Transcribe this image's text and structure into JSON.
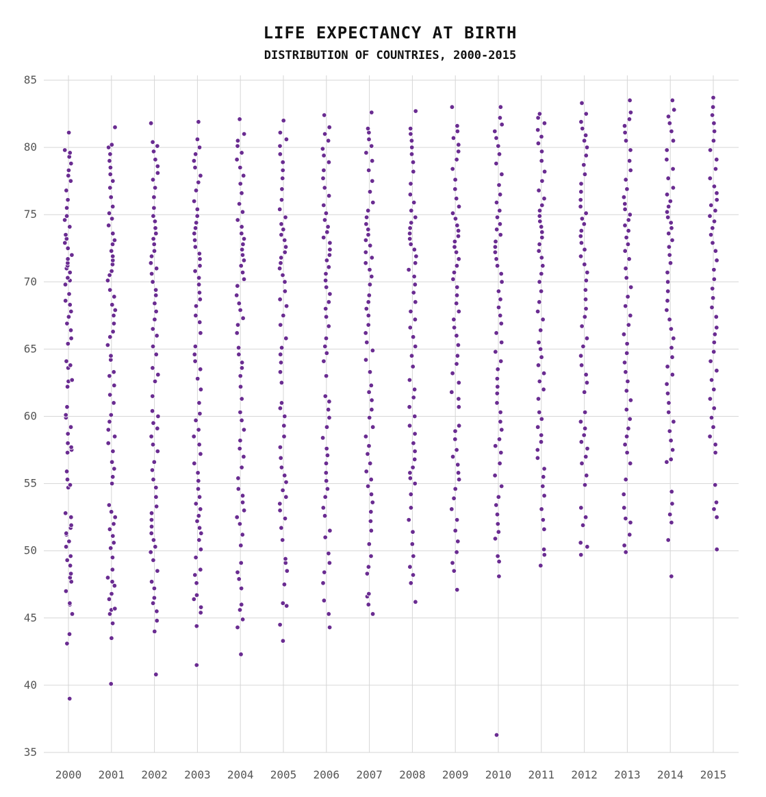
{
  "chart_data": {
    "type": "scatter",
    "title": "LIFE EXPECTANCY AT BIRTH",
    "subtitle": "DISTRIBUTION OF COUNTRIES, 2000-2015",
    "xlabel": "",
    "ylabel": "",
    "categories": [
      "2000",
      "2001",
      "2002",
      "2003",
      "2004",
      "2005",
      "2006",
      "2007",
      "2008",
      "2009",
      "2010",
      "2011",
      "2012",
      "2013",
      "2014",
      "2015"
    ],
    "ylim": [
      35,
      85
    ],
    "y_ticks": [
      35,
      40,
      45,
      50,
      55,
      60,
      65,
      70,
      75,
      80,
      85
    ],
    "grid": true,
    "point_color": "#6a2c91",
    "series": [
      {
        "year": "2000",
        "values": [
          39.0,
          43.1,
          43.8,
          45.3,
          46.0,
          46.1,
          47.0,
          47.7,
          48.0,
          48.3,
          48.9,
          49.3,
          49.6,
          50.3,
          50.7,
          51.2,
          51.3,
          51.7,
          51.9,
          52.5,
          52.8,
          54.7,
          54.9,
          55.3,
          55.9,
          57.3,
          57.5,
          57.7,
          58.0,
          58.7,
          59.2,
          59.9,
          60.1,
          60.7,
          62.2,
          62.6,
          62.7,
          63.6,
          63.8,
          64.1,
          65.4,
          65.8,
          66.4,
          66.9,
          67.4,
          67.8,
          68.3,
          68.6,
          69.1,
          69.8,
          70.1,
          70.3,
          70.7,
          71.0,
          71.2,
          71.4,
          71.7,
          72.0,
          72.5,
          72.9,
          73.2,
          73.5,
          74.1,
          74.6,
          74.9,
          75.5,
          76.1,
          76.8,
          77.5,
          77.9,
          78.3,
          78.8,
          79.3,
          79.6,
          79.8,
          81.1
        ]
      },
      {
        "year": "2001",
        "values": [
          40.1,
          43.5,
          44.6,
          45.3,
          45.6,
          45.7,
          46.4,
          46.8,
          47.4,
          47.7,
          48.0,
          48.6,
          49.5,
          50.2,
          50.6,
          51.1,
          51.6,
          52.0,
          52.5,
          52.9,
          53.4,
          55.0,
          55.5,
          56.1,
          56.6,
          57.4,
          58.0,
          58.5,
          59.0,
          59.6,
          60.1,
          61.0,
          61.6,
          62.3,
          63.0,
          63.3,
          64.2,
          64.5,
          65.3,
          65.9,
          66.3,
          66.9,
          67.5,
          67.9,
          68.3,
          68.9,
          69.4,
          70.1,
          70.5,
          70.8,
          71.3,
          71.6,
          71.9,
          72.3,
          72.8,
          73.1,
          73.6,
          74.2,
          74.7,
          75.1,
          75.6,
          76.3,
          77.0,
          77.5,
          78.0,
          78.5,
          79.0,
          79.5,
          80.0,
          80.2,
          81.5
        ]
      },
      {
        "year": "2002",
        "values": [
          40.8,
          44.0,
          44.8,
          45.5,
          46.1,
          46.5,
          47.2,
          47.7,
          48.5,
          49.3,
          49.9,
          50.3,
          50.8,
          51.3,
          51.8,
          52.3,
          52.8,
          53.3,
          54.0,
          54.7,
          55.3,
          56.0,
          56.6,
          57.4,
          57.9,
          58.5,
          59.1,
          59.5,
          60.0,
          60.4,
          61.5,
          62.6,
          63.1,
          63.6,
          64.6,
          65.2,
          66.0,
          66.5,
          67.2,
          67.8,
          68.4,
          69.0,
          69.4,
          70.0,
          70.6,
          71.0,
          71.4,
          71.9,
          72.3,
          72.8,
          73.2,
          73.6,
          74.0,
          74.5,
          74.9,
          75.5,
          76.3,
          77.0,
          77.6,
          78.1,
          78.6,
          79.1,
          79.7,
          80.1,
          80.4,
          81.8
        ]
      },
      {
        "year": "2003",
        "values": [
          41.5,
          44.4,
          45.4,
          45.8,
          46.4,
          46.7,
          47.6,
          48.2,
          48.6,
          49.5,
          50.1,
          50.8,
          51.3,
          51.7,
          52.2,
          52.6,
          53.1,
          53.5,
          54.0,
          54.6,
          55.2,
          55.8,
          56.5,
          57.2,
          57.9,
          58.5,
          59.0,
          59.7,
          60.2,
          61.0,
          62.0,
          62.8,
          63.5,
          64.1,
          64.6,
          65.2,
          66.2,
          67.0,
          67.5,
          68.2,
          68.7,
          69.2,
          69.8,
          70.3,
          70.8,
          71.2,
          71.7,
          72.1,
          72.6,
          73.1,
          73.6,
          74.0,
          74.4,
          74.9,
          75.4,
          76.0,
          76.8,
          77.4,
          77.9,
          78.5,
          79.0,
          79.5,
          80.0,
          80.6,
          81.9
        ]
      },
      {
        "year": "2004",
        "values": [
          42.3,
          44.3,
          44.9,
          45.6,
          46.0,
          47.2,
          47.9,
          48.4,
          49.1,
          50.4,
          51.2,
          52.0,
          52.5,
          53.0,
          53.6,
          54.1,
          54.6,
          55.4,
          56.2,
          57.0,
          57.6,
          58.2,
          59.0,
          59.7,
          60.3,
          61.3,
          62.2,
          63.0,
          63.6,
          64.0,
          64.6,
          65.1,
          66.2,
          66.8,
          67.3,
          67.9,
          68.4,
          69.0,
          69.7,
          70.2,
          70.7,
          71.2,
          71.6,
          72.0,
          72.4,
          72.8,
          73.2,
          73.6,
          74.1,
          74.6,
          75.2,
          75.8,
          76.6,
          77.3,
          77.9,
          78.5,
          79.1,
          79.6,
          80.1,
          80.5,
          81.0,
          82.1
        ]
      },
      {
        "year": "2005",
        "values": [
          43.3,
          44.5,
          45.9,
          46.1,
          47.5,
          48.5,
          49.1,
          49.4,
          50.8,
          51.7,
          52.4,
          53.0,
          53.5,
          54.0,
          54.5,
          55.1,
          55.6,
          56.2,
          56.9,
          57.7,
          58.5,
          59.3,
          60.0,
          60.6,
          61.0,
          62.5,
          63.3,
          64.0,
          64.6,
          65.1,
          65.8,
          66.8,
          67.5,
          68.2,
          68.7,
          69.3,
          70.0,
          70.5,
          71.0,
          71.4,
          71.8,
          72.2,
          72.6,
          73.1,
          73.5,
          73.9,
          74.3,
          74.8,
          75.4,
          76.1,
          76.9,
          77.7,
          78.3,
          78.9,
          79.5,
          80.1,
          80.6,
          81.1,
          82.0
        ]
      },
      {
        "year": "2006",
        "values": [
          44.3,
          45.3,
          46.3,
          47.6,
          48.4,
          49.1,
          49.8,
          51.0,
          51.5,
          52.6,
          53.2,
          54.0,
          54.6,
          55.2,
          55.8,
          56.5,
          57.1,
          57.6,
          58.4,
          59.2,
          59.9,
          60.5,
          61.1,
          61.5,
          63.0,
          64.1,
          64.7,
          65.2,
          65.8,
          66.7,
          67.4,
          68.0,
          68.5,
          69.1,
          69.6,
          70.1,
          70.6,
          71.1,
          71.6,
          72.0,
          72.4,
          72.9,
          73.3,
          73.7,
          74.1,
          74.6,
          75.1,
          75.7,
          76.4,
          77.0,
          77.7,
          78.3,
          78.9,
          79.4,
          79.9,
          80.5,
          81.0,
          81.5,
          82.4
        ]
      },
      {
        "year": "2007",
        "values": [
          45.3,
          46.0,
          46.6,
          46.8,
          48.3,
          48.8,
          49.6,
          50.5,
          51.5,
          52.2,
          52.9,
          53.6,
          54.2,
          54.8,
          55.3,
          55.9,
          56.5,
          57.2,
          57.8,
          58.5,
          59.2,
          59.9,
          60.5,
          61.2,
          61.8,
          62.3,
          63.3,
          64.2,
          64.9,
          65.5,
          66.2,
          66.8,
          67.5,
          68.0,
          68.5,
          69.0,
          69.8,
          70.4,
          70.9,
          71.4,
          71.8,
          72.2,
          72.7,
          73.1,
          73.5,
          73.9,
          74.3,
          74.8,
          75.3,
          75.9,
          76.7,
          77.5,
          78.3,
          79.0,
          79.6,
          80.1,
          80.6,
          81.1,
          81.4,
          82.6
        ]
      },
      {
        "year": "2008",
        "values": [
          46.2,
          47.6,
          48.2,
          48.8,
          49.6,
          50.5,
          51.4,
          52.3,
          53.2,
          54.2,
          55.0,
          55.4,
          55.8,
          56.2,
          56.8,
          57.4,
          58.0,
          58.7,
          59.3,
          60.0,
          60.7,
          61.4,
          62.0,
          62.7,
          63.7,
          64.5,
          65.2,
          65.9,
          66.6,
          67.2,
          67.8,
          68.5,
          69.2,
          69.8,
          70.4,
          70.9,
          71.4,
          71.9,
          72.4,
          72.8,
          73.2,
          73.6,
          74.0,
          74.4,
          74.8,
          75.3,
          75.9,
          76.5,
          77.3,
          78.2,
          78.9,
          79.5,
          80.0,
          80.5,
          81.0,
          81.4,
          82.7
        ]
      },
      {
        "year": "2009",
        "values": [
          47.1,
          48.5,
          49.1,
          49.9,
          50.7,
          51.5,
          52.3,
          53.1,
          53.9,
          54.6,
          55.3,
          55.8,
          56.4,
          57.0,
          57.5,
          58.3,
          58.9,
          59.3,
          60.7,
          61.3,
          61.8,
          62.5,
          63.2,
          63.9,
          64.5,
          65.3,
          66.0,
          66.6,
          67.2,
          67.8,
          68.4,
          69.0,
          69.6,
          70.2,
          70.7,
          71.2,
          71.7,
          72.2,
          72.6,
          73.0,
          73.4,
          73.8,
          74.2,
          74.7,
          75.1,
          75.6,
          76.2,
          76.9,
          77.6,
          78.4,
          79.1,
          79.7,
          80.2,
          80.7,
          81.2,
          81.6,
          83.0
        ]
      },
      {
        "year": "2010",
        "values": [
          36.3,
          48.1,
          49.2,
          49.6,
          50.9,
          51.4,
          52.0,
          52.7,
          53.4,
          54.0,
          54.8,
          55.6,
          56.5,
          57.3,
          57.8,
          58.3,
          59.0,
          59.6,
          60.3,
          61.0,
          61.7,
          62.2,
          62.8,
          63.5,
          64.1,
          64.8,
          65.5,
          66.2,
          66.9,
          67.5,
          68.1,
          68.7,
          69.3,
          70.0,
          70.6,
          71.2,
          71.7,
          72.2,
          72.6,
          73.0,
          73.5,
          73.9,
          74.3,
          74.8,
          75.3,
          75.9,
          76.5,
          77.2,
          78.0,
          78.8,
          79.5,
          80.1,
          80.7,
          81.2,
          81.7,
          82.2,
          83.0
        ]
      },
      {
        "year": "2011",
        "values": [
          48.9,
          49.7,
          50.1,
          51.6,
          52.3,
          53.1,
          54.1,
          54.8,
          55.5,
          56.1,
          56.9,
          57.5,
          58.1,
          58.6,
          59.2,
          59.8,
          60.3,
          61.3,
          62.0,
          62.6,
          63.2,
          63.8,
          64.4,
          65.0,
          65.5,
          66.4,
          67.2,
          67.8,
          68.5,
          69.3,
          70.0,
          70.6,
          71.2,
          71.8,
          72.3,
          72.8,
          73.3,
          73.7,
          74.1,
          74.5,
          74.9,
          75.3,
          75.7,
          76.2,
          76.8,
          77.5,
          78.2,
          79.0,
          79.7,
          80.3,
          80.8,
          81.3,
          81.8,
          82.2,
          82.5
        ]
      },
      {
        "year": "2012",
        "values": [
          49.7,
          50.3,
          50.6,
          51.9,
          52.5,
          53.2,
          54.9,
          55.6,
          56.5,
          57.0,
          57.6,
          58.1,
          58.6,
          59.1,
          59.6,
          60.3,
          61.8,
          62.5,
          63.1,
          63.8,
          64.5,
          65.2,
          65.8,
          66.7,
          67.4,
          68.0,
          68.7,
          69.4,
          70.1,
          70.7,
          71.3,
          71.9,
          72.4,
          72.9,
          73.4,
          73.8,
          74.3,
          74.7,
          75.1,
          75.6,
          76.1,
          76.7,
          77.3,
          78.0,
          78.7,
          79.4,
          80.0,
          80.5,
          80.9,
          81.4,
          81.9,
          82.5,
          83.3
        ]
      },
      {
        "year": "2013",
        "values": [
          49.9,
          50.4,
          51.2,
          52.1,
          52.4,
          53.2,
          54.2,
          55.3,
          56.5,
          57.3,
          57.9,
          58.5,
          59.1,
          59.8,
          60.5,
          61.2,
          61.9,
          62.6,
          63.3,
          64.0,
          64.7,
          65.4,
          66.1,
          66.8,
          67.5,
          68.2,
          68.9,
          69.6,
          70.3,
          71.0,
          71.7,
          72.3,
          72.8,
          73.3,
          73.8,
          74.2,
          74.6,
          75.0,
          75.4,
          75.8,
          76.3,
          76.9,
          77.6,
          78.3,
          79.0,
          79.8,
          80.5,
          81.1,
          81.6,
          82.1,
          82.6,
          83.5
        ]
      },
      {
        "year": "2014",
        "values": [
          48.1,
          50.8,
          52.1,
          52.7,
          53.5,
          54.4,
          56.6,
          56.8,
          57.5,
          58.2,
          58.9,
          59.6,
          60.3,
          61.0,
          61.7,
          62.4,
          63.1,
          63.7,
          64.4,
          65.1,
          65.8,
          66.5,
          67.2,
          67.9,
          68.6,
          69.3,
          70.0,
          70.7,
          71.4,
          72.0,
          72.6,
          73.1,
          73.6,
          74.0,
          74.4,
          74.8,
          75.2,
          75.6,
          76.0,
          76.5,
          77.0,
          77.7,
          78.4,
          79.1,
          79.8,
          80.5,
          81.2,
          81.8,
          82.3,
          82.8,
          83.5
        ]
      },
      {
        "year": "2015",
        "values": [
          50.1,
          52.5,
          53.1,
          53.6,
          54.9,
          57.3,
          57.9,
          58.5,
          59.2,
          59.9,
          60.6,
          61.3,
          62.0,
          62.7,
          63.4,
          64.1,
          64.8,
          65.5,
          66.1,
          66.6,
          67.4,
          68.1,
          68.8,
          69.5,
          70.2,
          70.9,
          71.6,
          72.3,
          72.9,
          73.5,
          74.0,
          74.5,
          74.9,
          75.3,
          75.7,
          76.1,
          76.6,
          77.1,
          77.7,
          78.4,
          79.1,
          79.8,
          80.5,
          81.2,
          81.8,
          82.4,
          83.0,
          83.7
        ]
      }
    ]
  }
}
